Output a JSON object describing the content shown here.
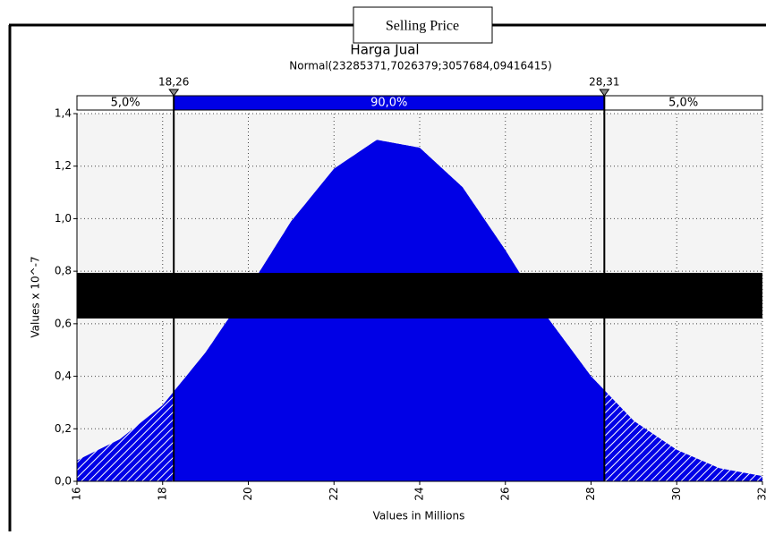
{
  "chart_data": {
    "type": "area",
    "overlay_label": "Selling Price",
    "title": "Harga Jual",
    "subtitle": "Normal(23285371,7026379;3057684,09416415)",
    "x_label": "Values in Millions",
    "y_label": "Values x 10^-7",
    "x": [
      16,
      17,
      18,
      19,
      20,
      21,
      22,
      23,
      24,
      25,
      26,
      27,
      28,
      29,
      30,
      31,
      32
    ],
    "values": [
      0.08,
      0.16,
      0.29,
      0.49,
      0.73,
      0.99,
      1.19,
      1.3,
      1.27,
      1.12,
      0.88,
      0.62,
      0.4,
      0.23,
      0.12,
      0.05,
      0.02
    ],
    "color": "#0000e6",
    "tail_fill": "hatched",
    "xlim": [
      16,
      32
    ],
    "xticks": [
      16,
      18,
      20,
      22,
      24,
      26,
      28,
      30,
      32
    ],
    "ylim": [
      0,
      1.4
    ],
    "yticks": [
      {
        "value": 0,
        "label": "0,0"
      },
      {
        "value": 0.2,
        "label": "0,2"
      },
      {
        "value": 0.4,
        "label": "0,4"
      },
      {
        "value": 0.6,
        "label": "0,6"
      },
      {
        "value": 0.8,
        "label": "0,8"
      },
      {
        "value": 1.0,
        "label": "1,0"
      },
      {
        "value": 1.2,
        "label": "1,2"
      },
      {
        "value": 1.4,
        "label": "1,4"
      }
    ],
    "grid": true,
    "delimiters": [
      {
        "value": 18.26,
        "label": "18,26"
      },
      {
        "value": 28.31,
        "label": "28,31"
      }
    ],
    "bands": {
      "values": [
        5,
        90,
        5
      ],
      "value_labels": [
        "5,0%",
        "90,0%",
        "5,0%"
      ]
    }
  }
}
